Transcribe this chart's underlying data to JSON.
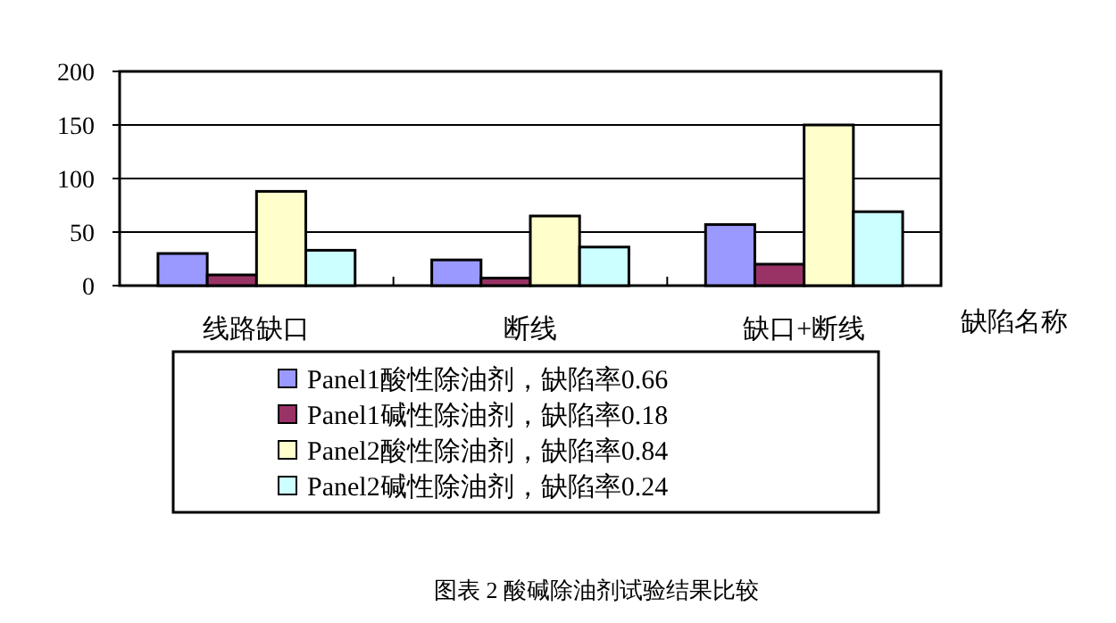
{
  "chart_data": {
    "type": "bar",
    "categories": [
      "线路缺口",
      "断线",
      "缺口+断线"
    ],
    "series": [
      {
        "name": "Panel1酸性除油剂，缺陷率0.66",
        "color": "#9999ff",
        "values": [
          30,
          24,
          57
        ]
      },
      {
        "name": "Panel1碱性除油剂，缺陷率0.18",
        "color": "#993366",
        "values": [
          10,
          7,
          20
        ]
      },
      {
        "name": "Panel2酸性除油剂，缺陷率0.84",
        "color": "#ffffcc",
        "values": [
          88,
          65,
          150
        ]
      },
      {
        "name": "Panel2碱性除油剂，缺陷率0.24",
        "color": "#ccffff",
        "values": [
          33,
          36,
          69
        ]
      }
    ],
    "xlabel": "缺陷名称",
    "ylim": [
      0,
      200
    ],
    "yticks": [
      0,
      50,
      100,
      150,
      200
    ],
    "grid": "y",
    "legend": "bottom",
    "annotations": [
      "图表 2 酸碱除油剂试验结果比较"
    ]
  }
}
